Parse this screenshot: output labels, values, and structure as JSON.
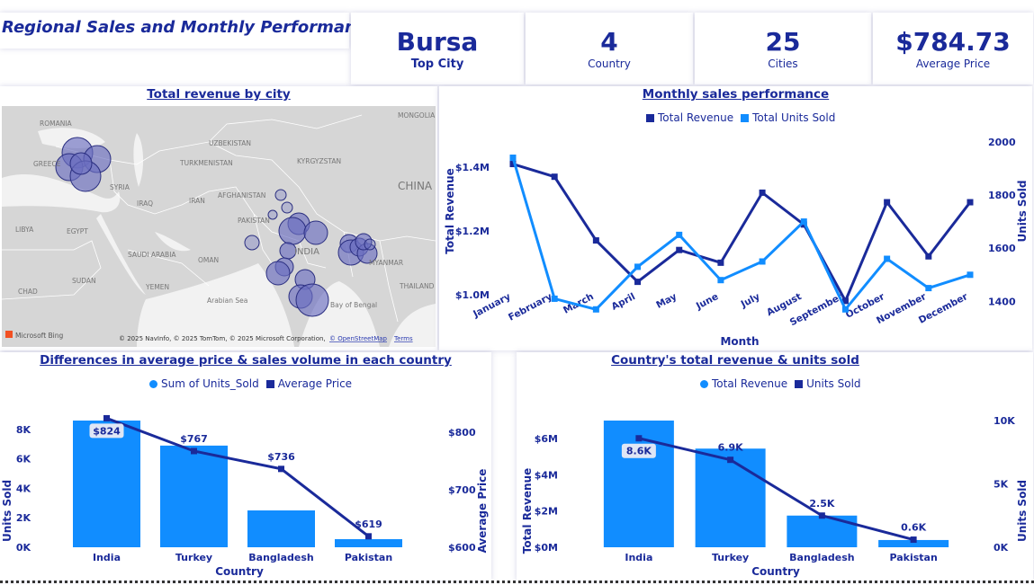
{
  "header": {
    "title": "Regional Sales and Monthly Performance"
  },
  "kpis": [
    {
      "value": "Bursa",
      "label": "Top City"
    },
    {
      "value": "4",
      "label": "Country"
    },
    {
      "value": "25",
      "label": "Cities"
    },
    {
      "value": "$784.73",
      "label": "Average Price"
    }
  ],
  "map": {
    "title": "Total revenue by city",
    "labels": [
      "ROMANIA",
      "MONGOLIA",
      "UZBEKISTAN",
      "GREECE",
      "TURKMENISTAN",
      "KYRGYZSTAN",
      "SYRIA",
      "AFGHANISTAN",
      "CHINA",
      "IRAQ",
      "IRAN",
      "LIBYA",
      "EGYPT",
      "PAKISTAN",
      "SAUDI ARABIA",
      "OMAN",
      "INDIA",
      "MYANMAR",
      "SUDAN",
      "YEMEN",
      "CHAD",
      "Arabian Sea",
      "Bay of Bengal",
      "THAILAND"
    ],
    "attribution": "© 2025 NavInfo, © 2025 TomTom, © 2025 Microsoft Corporation,",
    "osm": "© OpenStreetMap",
    "terms": "Terms",
    "bing": "Microsoft Bing",
    "bubble_color": "#6b6fc0"
  },
  "chart_data": [
    {
      "type": "line",
      "title": "Monthly sales performance",
      "xlabel": "Month",
      "ylabel": "Total Revenue",
      "y2label": "Units Sold",
      "categories": [
        "January",
        "February",
        "March",
        "April",
        "May",
        "June",
        "July",
        "August",
        "September",
        "October",
        "November",
        "December"
      ],
      "series": [
        {
          "name": "Total Revenue",
          "axis": "left",
          "color": "#1a2a9a",
          "values": [
            1.41,
            1.37,
            1.17,
            1.04,
            1.14,
            1.1,
            1.32,
            1.22,
            0.98,
            1.29,
            1.12,
            1.29
          ]
        },
        {
          "name": "Total Units Sold",
          "axis": "right",
          "color": "#118dff",
          "values": [
            1940,
            1410,
            1370,
            1530,
            1650,
            1480,
            1550,
            1700,
            1370,
            1560,
            1450,
            1500
          ]
        }
      ],
      "yticks": [
        "$1.0M",
        "$1.2M",
        "$1.4M"
      ],
      "ylim": [
        0.895,
        1.53
      ],
      "y2ticks": [
        "1400",
        "1600",
        "1800",
        "2000"
      ],
      "y2lim": [
        1300,
        2060
      ],
      "legend": "top-center"
    },
    {
      "type": "bar",
      "title": "Differences in average price & sales volume in each country",
      "xlabel": "Country",
      "ylabel": "Units Sold",
      "y2label": "Average Price",
      "categories": [
        "India",
        "Turkey",
        "Bangladesh",
        "Pakistan"
      ],
      "series": [
        {
          "name": "Sum of Units_Sold",
          "type": "bar",
          "color": "#118dff",
          "values": [
            8600,
            6900,
            2500,
            550
          ]
        },
        {
          "name": "Average Price",
          "type": "line",
          "color": "#1a2a9a",
          "values": [
            824,
            767,
            736,
            619
          ],
          "labels": [
            "$824",
            "$767",
            "$736",
            "$619"
          ]
        }
      ],
      "yticks": [
        "0K",
        "2K",
        "4K",
        "6K",
        "8K"
      ],
      "ylim": [
        0,
        8600
      ],
      "y2ticks": [
        "$600",
        "$700",
        "$800"
      ],
      "y2lim": [
        600,
        820
      ],
      "legend": "top-center"
    },
    {
      "type": "bar",
      "title": "Country's total revenue & units sold",
      "xlabel": "Country",
      "ylabel": "Total Revenue",
      "y2label": "Units Sold",
      "categories": [
        "India",
        "Turkey",
        "Bangladesh",
        "Pakistan"
      ],
      "series": [
        {
          "name": "Total Revenue",
          "type": "bar",
          "color": "#118dff",
          "values": [
            7.0,
            5.45,
            1.75,
            0.4
          ]
        },
        {
          "name": "Units Sold",
          "type": "line",
          "color": "#1a2a9a",
          "values": [
            8600,
            6900,
            2500,
            600
          ],
          "labels": [
            "8.6K",
            "6.9K",
            "2.5K",
            "0.6K"
          ]
        }
      ],
      "yticks": [
        "$0M",
        "$2M",
        "$4M",
        "$6M"
      ],
      "ylim": [
        0,
        7.0
      ],
      "y2ticks": [
        "0K",
        "5K",
        "10K"
      ],
      "y2lim": [
        0,
        10000
      ],
      "legend": "top-center"
    }
  ]
}
